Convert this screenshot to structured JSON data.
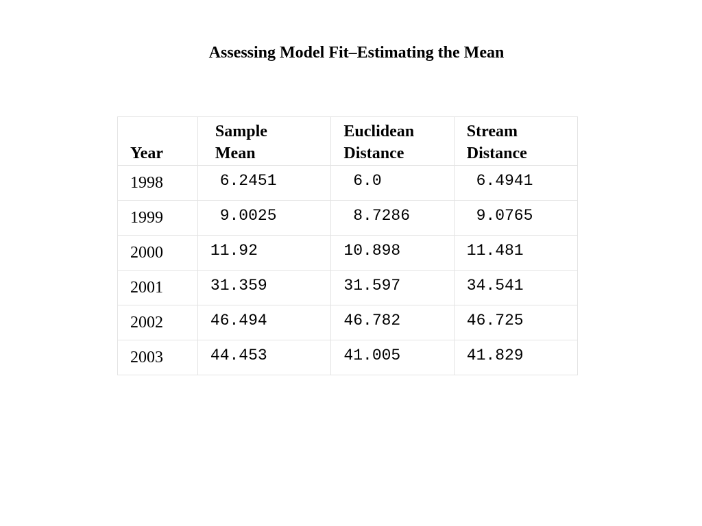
{
  "title": "Assessing Model Fit–Estimating the Mean",
  "table": {
    "headers": {
      "year": "Year",
      "sample_mean": "Sample\nMean",
      "euclidean": "Euclidean\nDistance",
      "stream": "Stream\nDistance"
    },
    "rows": [
      {
        "year": "1998",
        "sample_mean": " 6.2451",
        "euclidean": " 6.0",
        "stream": " 6.4941"
      },
      {
        "year": "1999",
        "sample_mean": " 9.0025",
        "euclidean": " 8.7286",
        "stream": " 9.0765"
      },
      {
        "year": "2000",
        "sample_mean": "11.92",
        "euclidean": "10.898",
        "stream": "11.481"
      },
      {
        "year": "2001",
        "sample_mean": "31.359",
        "euclidean": "31.597",
        "stream": "34.541"
      },
      {
        "year": "2002",
        "sample_mean": "46.494",
        "euclidean": "46.782",
        "stream": "46.725"
      },
      {
        "year": "2003",
        "sample_mean": "44.453",
        "euclidean": "41.005",
        "stream": "41.829"
      }
    ]
  }
}
